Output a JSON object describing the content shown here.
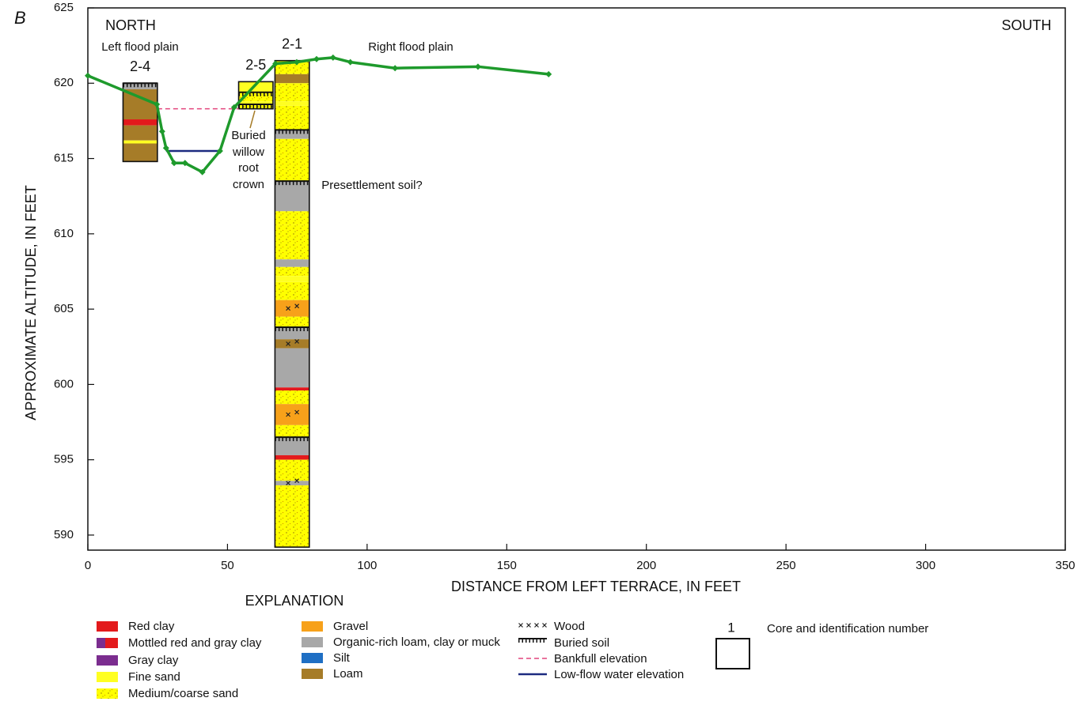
{
  "chart_data": {
    "type": "line",
    "panel_label": "B",
    "x_label": "DISTANCE FROM LEFT TERRACE, IN FEET",
    "y_label": "APPROXIMATE ALTITUDE, IN FEET",
    "xlim": [
      0,
      350
    ],
    "ylim": [
      589,
      625
    ],
    "xticks": [
      0,
      50,
      100,
      150,
      200,
      250,
      300,
      350
    ],
    "yticks": [
      590,
      595,
      600,
      605,
      610,
      615,
      620,
      625
    ],
    "color": "#1e9a2c",
    "x": [
      0,
      24.7,
      26.6,
      28,
      30.9,
      34.8,
      41,
      47.3,
      52.4,
      67.2,
      74.8,
      81.9,
      87.8,
      94,
      110,
      139.7,
      165
    ],
    "values": [
      620.5,
      618.6,
      616.8,
      615.7,
      614.7,
      614.7,
      614.1,
      615.5,
      618.4,
      621.3,
      621.4,
      621.6,
      621.7,
      621.4,
      621,
      621.1,
      620.6
    ],
    "annotations": {
      "north": "NORTH",
      "south": "SOUTH",
      "left_flood_plain": "Left flood plain",
      "right_flood_plain": "Right flood plain",
      "willow": [
        "Buried",
        "willow",
        "root",
        "crown"
      ],
      "presettlement": "Presettlement soil?"
    },
    "bankfull": {
      "x": [
        24.9,
        54
      ],
      "y": 618.3
    },
    "low_flow": {
      "x": [
        28,
        47.6
      ],
      "y": 615.5
    },
    "cores": [
      {
        "label": "2-4",
        "x_left": 12.6,
        "x_right": 24.9,
        "layers": [
          {
            "top": 620,
            "bottom": 619.6,
            "material": "Organic-rich loam, clay or muck",
            "buried_soil": true
          },
          {
            "top": 619.6,
            "bottom": 617.6,
            "material": "Loam"
          },
          {
            "top": 617.6,
            "bottom": 617.2,
            "material": "Red clay"
          },
          {
            "top": 617.2,
            "bottom": 616.2,
            "material": "Loam"
          },
          {
            "top": 616.2,
            "bottom": 616,
            "material": "Fine sand"
          },
          {
            "top": 616,
            "bottom": 614.8,
            "material": "Loam"
          }
        ]
      },
      {
        "label": "2-5",
        "x_left": 54,
        "x_right": 66.3,
        "layers": [
          {
            "top": 620.1,
            "bottom": 619.4,
            "material": "Fine sand"
          },
          {
            "top": 619.4,
            "bottom": 618.8,
            "material": "Medium/coarse sand",
            "buried_soil": true
          },
          {
            "top": 618.8,
            "bottom": 618.6,
            "material": "Fine sand"
          },
          {
            "top": 618.6,
            "bottom": 618.3,
            "material": "Medium/coarse sand",
            "buried_soil": true
          }
        ]
      },
      {
        "label": "2-1",
        "x_left": 67,
        "x_right": 79.3,
        "layers": [
          {
            "top": 621.5,
            "bottom": 620.6,
            "material": "Medium/coarse sand"
          },
          {
            "top": 620.6,
            "bottom": 620,
            "material": "Loam"
          },
          {
            "top": 620,
            "bottom": 618.8,
            "material": "Medium/coarse sand"
          },
          {
            "top": 618.8,
            "bottom": 618.5,
            "material": "Fine sand"
          },
          {
            "top": 618.5,
            "bottom": 616.9,
            "material": "Medium/coarse sand"
          },
          {
            "top": 616.9,
            "bottom": 616.3,
            "material": "Organic-rich loam, clay or muck",
            "buried_soil": true
          },
          {
            "top": 616.3,
            "bottom": 613.5,
            "material": "Medium/coarse sand"
          },
          {
            "top": 613.5,
            "bottom": 611.5,
            "material": "Organic-rich loam, clay or muck",
            "buried_soil": true
          },
          {
            "top": 611.5,
            "bottom": 610.6,
            "material": "Medium/coarse sand"
          },
          {
            "top": 610.6,
            "bottom": 608.3,
            "material": "Medium/coarse sand"
          },
          {
            "top": 608.3,
            "bottom": 607.8,
            "material": "Organic-rich loam, clay or muck"
          },
          {
            "top": 607.8,
            "bottom": 607.2,
            "material": "Medium/coarse sand"
          },
          {
            "top": 607.2,
            "bottom": 606.8,
            "material": "Fine sand"
          },
          {
            "top": 606.8,
            "bottom": 605.6,
            "material": "Medium/coarse sand"
          },
          {
            "top": 605.6,
            "bottom": 604.5,
            "material": "Gravel",
            "wood": true
          },
          {
            "top": 604.5,
            "bottom": 603.8,
            "material": "Medium/coarse sand"
          },
          {
            "top": 603.8,
            "bottom": 603,
            "material": "Organic-rich loam, clay or muck",
            "buried_soil": true
          },
          {
            "top": 603,
            "bottom": 602.4,
            "material": "Loam",
            "wood": true
          },
          {
            "top": 602.4,
            "bottom": 599.8,
            "material": "Organic-rich loam, clay or muck"
          },
          {
            "top": 599.8,
            "bottom": 599.6,
            "material": "Red clay"
          },
          {
            "top": 599.6,
            "bottom": 598.7,
            "material": "Medium/coarse sand"
          },
          {
            "top": 598.7,
            "bottom": 597.3,
            "material": "Gravel",
            "wood": true
          },
          {
            "top": 597.3,
            "bottom": 596.5,
            "material": "Medium/coarse sand"
          },
          {
            "top": 596.5,
            "bottom": 595.3,
            "material": "Organic-rich loam, clay or muck",
            "buried_soil": true
          },
          {
            "top": 595.3,
            "bottom": 595,
            "material": "Red clay"
          },
          {
            "top": 595,
            "bottom": 593.6,
            "material": "Medium/coarse sand"
          },
          {
            "top": 593.6,
            "bottom": 593.3,
            "material": "Organic-rich loam, clay or muck",
            "wood": true
          },
          {
            "top": 593.3,
            "bottom": 589.2,
            "material": "Medium/coarse sand"
          }
        ]
      }
    ],
    "explanation": {
      "title": "EXPLANATION",
      "items": [
        {
          "name": "Red clay",
          "kind": "fill",
          "color": "#e31a1c"
        },
        {
          "name": "Mottled red and gray clay",
          "kind": "mottled",
          "color": "#e31a1c",
          "color2": "#7b2d8f"
        },
        {
          "name": "Gray clay",
          "kind": "fill",
          "color": "#7b2d8f"
        },
        {
          "name": "Fine sand",
          "kind": "fill",
          "color": "#ffff22"
        },
        {
          "name": "Medium/coarse sand",
          "kind": "speckle",
          "color": "#ffff00"
        },
        {
          "name": "Gravel",
          "kind": "fill",
          "color": "#f7a11a"
        },
        {
          "name": "Organic-rich loam, clay or muck",
          "kind": "fill",
          "color": "#a8a8a8"
        },
        {
          "name": "Silt",
          "kind": "fill",
          "color": "#1f6fc4"
        },
        {
          "name": "Loam",
          "kind": "fill",
          "color": "#a67c28"
        },
        {
          "name": "Wood",
          "kind": "wood",
          "color": "#222222"
        },
        {
          "name": "Buried soil",
          "kind": "buried-soil",
          "color": "#111111"
        },
        {
          "name": "Bankfull elevation",
          "kind": "dashed",
          "color": "#e2457d"
        },
        {
          "name": "Low-flow water elevation",
          "kind": "line",
          "color": "#1c2a80"
        },
        {
          "name": "Core and identification number",
          "kind": "core",
          "sample_label": "1"
        }
      ]
    }
  }
}
